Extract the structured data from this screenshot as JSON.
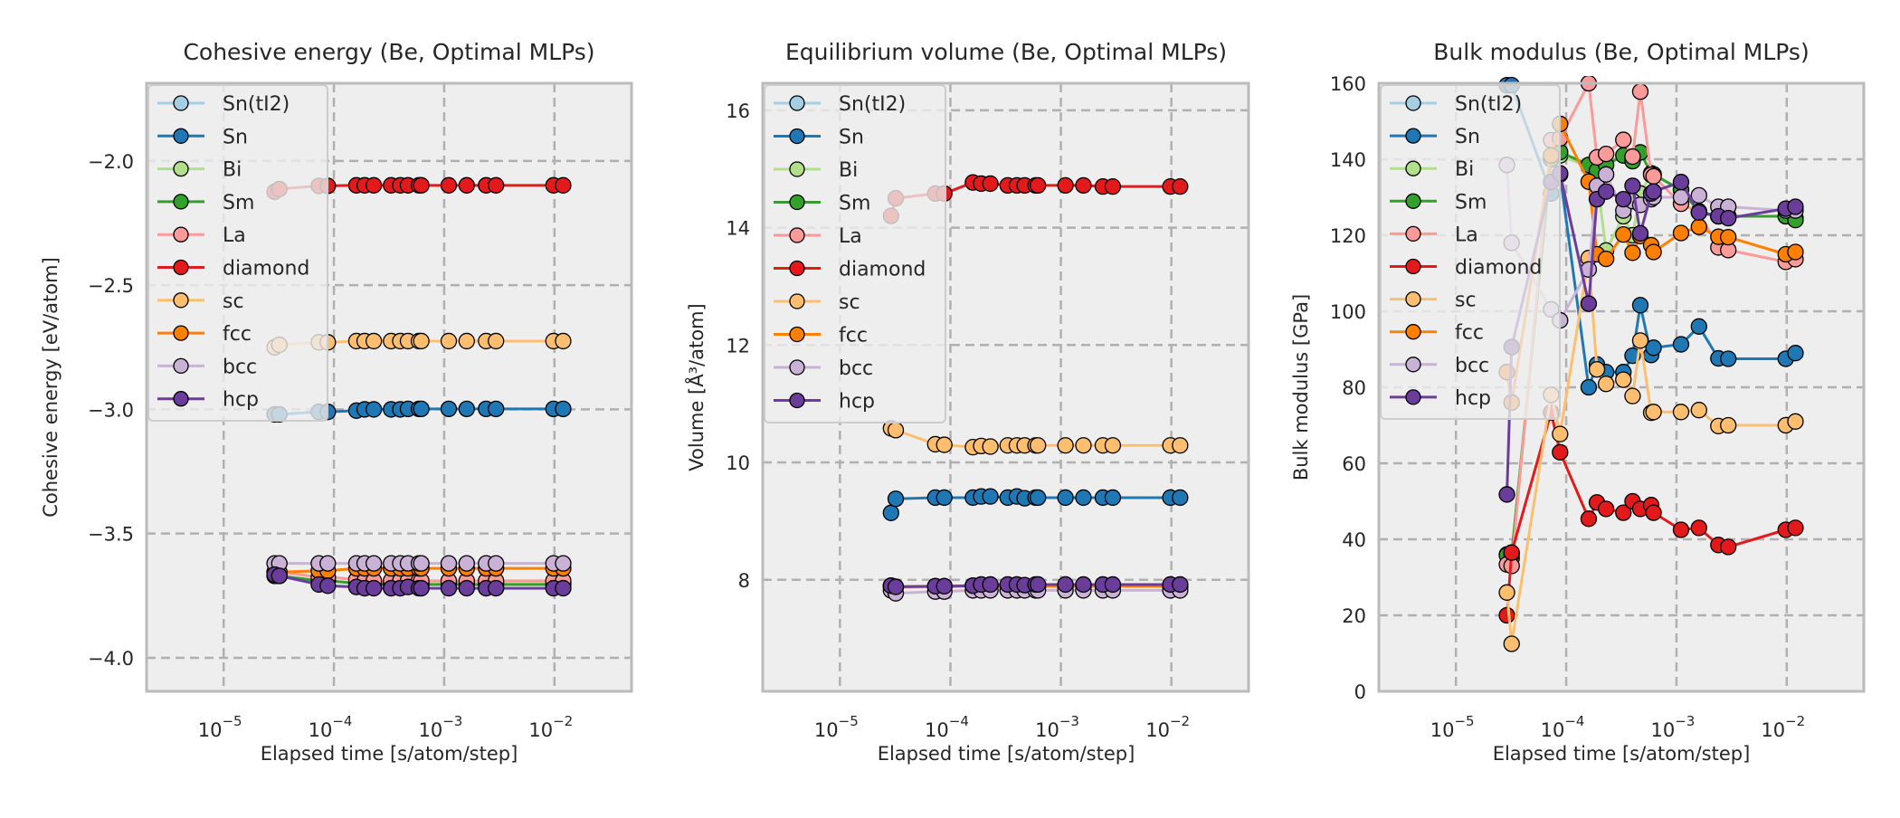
{
  "figure": {
    "background": "#ffffff",
    "axes_facecolor": "#eeeeee",
    "frame_color": "#bbbbbb",
    "grid_color": "#b0b0b0"
  },
  "series_styles": [
    {
      "name": "Sn(tI2)",
      "color": "#a6cee3"
    },
    {
      "name": "Sn",
      "color": "#1f78b4"
    },
    {
      "name": "Bi",
      "color": "#b2df8a"
    },
    {
      "name": "Sm",
      "color": "#33a02c"
    },
    {
      "name": "La",
      "color": "#fb9a99"
    },
    {
      "name": "diamond",
      "color": "#e31a1c"
    },
    {
      "name": "sc",
      "color": "#fdbf6f"
    },
    {
      "name": "fcc",
      "color": "#ff7f00"
    },
    {
      "name": "bcc",
      "color": "#cab2d6"
    },
    {
      "name": "hcp",
      "color": "#6a3d9a"
    }
  ],
  "chart_data": [
    {
      "type": "line",
      "title": "Cohesive energy (Be, Optimal MLPs)",
      "xlabel": "Elapsed time [s/atom/step]",
      "ylabel": "Cohesive energy [eV/atom]",
      "xscale": "log",
      "xlim": [
        2e-06,
        0.05
      ],
      "ylim": [
        -4.135,
        -1.687
      ],
      "xticks": [
        {
          "base": "10",
          "exp": "−5",
          "value": 1e-05
        },
        {
          "base": "10",
          "exp": "−4",
          "value": 0.0001
        },
        {
          "base": "10",
          "exp": "−3",
          "value": 0.001
        },
        {
          "base": "10",
          "exp": "−2",
          "value": 0.01
        }
      ],
      "yticks": [
        {
          "label": "−4.0",
          "value": -4.0
        },
        {
          "label": "−3.5",
          "value": -3.5
        },
        {
          "label": "−3.0",
          "value": -3.0
        },
        {
          "label": "−2.5",
          "value": -2.5
        },
        {
          "label": "−2.0",
          "value": -2.0
        }
      ],
      "grid": true,
      "legend": "upper-left",
      "x": [
        2.9e-05,
        3.2e-05,
        7.3e-05,
        8.8e-05,
        0.00016,
        0.00019,
        0.00023,
        0.00033,
        0.0004,
        0.00047,
        0.00059,
        0.00062,
        0.0011,
        0.0016,
        0.0024,
        0.00295,
        0.0098,
        0.012
      ],
      "series": [
        {
          "name": "Sn(tI2)",
          "values": []
        },
        {
          "name": "Sn",
          "values": [
            -3.02,
            -3.02,
            -3.01,
            -3.01,
            -3.005,
            -3.0,
            -3.0,
            -3.0,
            -3.0,
            -2.998,
            -2.998,
            -2.998,
            -2.998,
            -2.998,
            -2.998,
            -2.998,
            -2.998,
            -2.998
          ]
        },
        {
          "name": "Bi",
          "values": [
            -3.67,
            -3.67,
            -3.69,
            -3.69,
            -3.7,
            -3.7,
            -3.7,
            -3.7,
            -3.7,
            -3.7,
            -3.7,
            -3.7,
            -3.7,
            -3.7,
            -3.7,
            -3.7,
            -3.7,
            -3.7
          ]
        },
        {
          "name": "Sm",
          "values": [
            -3.67,
            -3.67,
            -3.69,
            -3.69,
            -3.7,
            -3.705,
            -3.705,
            -3.705,
            -3.705,
            -3.705,
            -3.705,
            -3.705,
            -3.705,
            -3.705,
            -3.705,
            -3.705,
            -3.705,
            -3.705
          ]
        },
        {
          "name": "La",
          "values": [
            -3.655,
            -3.655,
            -3.675,
            -3.675,
            -3.685,
            -3.69,
            -3.69,
            -3.69,
            -3.69,
            -3.69,
            -3.69,
            -3.69,
            -3.69,
            -3.69,
            -3.69,
            -3.69,
            -3.69,
            -3.69
          ]
        },
        {
          "name": "diamond",
          "values": [
            -2.124,
            -2.113,
            -2.1,
            -2.1,
            -2.098,
            -2.098,
            -2.098,
            -2.098,
            -2.098,
            -2.098,
            -2.098,
            -2.098,
            -2.098,
            -2.098,
            -2.098,
            -2.098,
            -2.098,
            -2.098
          ]
        },
        {
          "name": "sc",
          "values": [
            -2.75,
            -2.74,
            -2.73,
            -2.73,
            -2.725,
            -2.725,
            -2.725,
            -2.725,
            -2.725,
            -2.725,
            -2.725,
            -2.725,
            -2.725,
            -2.725,
            -2.725,
            -2.725,
            -2.725,
            -2.725
          ]
        },
        {
          "name": "fcc",
          "values": [
            -3.655,
            -3.655,
            -3.65,
            -3.65,
            -3.64,
            -3.64,
            -3.64,
            -3.64,
            -3.64,
            -3.64,
            -3.64,
            -3.64,
            -3.64,
            -3.64,
            -3.64,
            -3.64,
            -3.64,
            -3.64
          ]
        },
        {
          "name": "bcc",
          "values": [
            -3.62,
            -3.62,
            -3.62,
            -3.62,
            -3.62,
            -3.62,
            -3.62,
            -3.62,
            -3.62,
            -3.62,
            -3.62,
            -3.62,
            -3.62,
            -3.62,
            -3.62,
            -3.62,
            -3.62,
            -3.62
          ]
        },
        {
          "name": "hcp",
          "values": [
            -3.665,
            -3.67,
            -3.705,
            -3.71,
            -3.715,
            -3.72,
            -3.72,
            -3.72,
            -3.72,
            -3.715,
            -3.72,
            -3.72,
            -3.72,
            -3.72,
            -3.72,
            -3.72,
            -3.72,
            -3.72
          ]
        }
      ]
    },
    {
      "type": "line",
      "title": "Equilibrium volume (Be, Optimal MLPs)",
      "xlabel": "Elapsed time [s/atom/step]",
      "ylabel": "Volume [Å³/atom]",
      "xscale": "log",
      "xlim": [
        2e-06,
        0.05
      ],
      "ylim": [
        6.1,
        16.46
      ],
      "xticks": [
        {
          "base": "10",
          "exp": "−5",
          "value": 1e-05
        },
        {
          "base": "10",
          "exp": "−4",
          "value": 0.0001
        },
        {
          "base": "10",
          "exp": "−3",
          "value": 0.001
        },
        {
          "base": "10",
          "exp": "−2",
          "value": 0.01
        }
      ],
      "yticks": [
        {
          "label": "8",
          "value": 8
        },
        {
          "label": "10",
          "value": 10
        },
        {
          "label": "12",
          "value": 12
        },
        {
          "label": "14",
          "value": 14
        },
        {
          "label": "16",
          "value": 16
        }
      ],
      "grid": true,
      "legend": "upper-left",
      "x": [
        2.9e-05,
        3.2e-05,
        7.3e-05,
        8.8e-05,
        0.00016,
        0.00019,
        0.00023,
        0.00033,
        0.0004,
        0.00047,
        0.00059,
        0.00062,
        0.0011,
        0.0016,
        0.0024,
        0.00295,
        0.0098,
        0.012
      ],
      "series": [
        {
          "name": "Sn(tI2)",
          "values": []
        },
        {
          "name": "Sn",
          "values": [
            9.14,
            9.38,
            9.4,
            9.4,
            9.4,
            9.42,
            9.42,
            9.4,
            9.42,
            9.39,
            9.4,
            9.4,
            9.4,
            9.4,
            9.4,
            9.4,
            9.4,
            9.4
          ]
        },
        {
          "name": "Bi",
          "values": [
            7.9,
            7.88,
            7.89,
            7.89,
            7.9,
            7.9,
            7.9,
            7.9,
            7.9,
            7.9,
            7.9,
            7.9,
            7.9,
            7.9,
            7.9,
            7.9,
            7.9,
            7.9
          ]
        },
        {
          "name": "Sm",
          "values": [
            7.9,
            7.88,
            7.89,
            7.89,
            7.9,
            7.9,
            7.9,
            7.9,
            7.9,
            7.9,
            7.9,
            7.9,
            7.9,
            7.9,
            7.9,
            7.9,
            7.9,
            7.9
          ]
        },
        {
          "name": "La",
          "values": [
            7.89,
            7.87,
            7.88,
            7.88,
            7.89,
            7.89,
            7.89,
            7.89,
            7.89,
            7.89,
            7.89,
            7.89,
            7.89,
            7.89,
            7.89,
            7.89,
            7.89,
            7.89
          ]
        },
        {
          "name": "diamond",
          "values": [
            14.2,
            14.5,
            14.58,
            14.58,
            14.77,
            14.75,
            14.75,
            14.72,
            14.72,
            14.72,
            14.72,
            14.72,
            14.72,
            14.72,
            14.7,
            14.7,
            14.7,
            14.7
          ]
        },
        {
          "name": "sc",
          "values": [
            10.58,
            10.55,
            10.31,
            10.3,
            10.26,
            10.28,
            10.27,
            10.29,
            10.29,
            10.29,
            10.29,
            10.29,
            10.29,
            10.29,
            10.29,
            10.29,
            10.29,
            10.29
          ]
        },
        {
          "name": "fcc",
          "values": [
            7.89,
            7.88,
            7.89,
            7.89,
            7.9,
            7.9,
            7.9,
            7.89,
            7.89,
            7.89,
            7.89,
            7.89,
            7.89,
            7.89,
            7.89,
            7.89,
            7.89,
            7.89
          ]
        },
        {
          "name": "bcc",
          "values": [
            7.82,
            7.77,
            7.8,
            7.8,
            7.82,
            7.82,
            7.82,
            7.82,
            7.82,
            7.82,
            7.82,
            7.82,
            7.82,
            7.82,
            7.82,
            7.82,
            7.82,
            7.82
          ]
        },
        {
          "name": "hcp",
          "values": [
            7.9,
            7.88,
            7.89,
            7.89,
            7.9,
            7.92,
            7.92,
            7.92,
            7.92,
            7.91,
            7.92,
            7.92,
            7.92,
            7.92,
            7.92,
            7.92,
            7.92,
            7.92
          ]
        }
      ]
    },
    {
      "type": "line",
      "title": "Bulk modulus (Be, Optimal MLPs)",
      "xlabel": "Elapsed time [s/atom/step]",
      "ylabel": "Bulk modulus [GPa]",
      "xscale": "log",
      "xlim": [
        2e-06,
        0.05
      ],
      "ylim": [
        0,
        160
      ],
      "xticks": [
        {
          "base": "10",
          "exp": "−5",
          "value": 1e-05
        },
        {
          "base": "10",
          "exp": "−4",
          "value": 0.0001
        },
        {
          "base": "10",
          "exp": "−3",
          "value": 0.001
        },
        {
          "base": "10",
          "exp": "−2",
          "value": 0.01
        }
      ],
      "yticks": [
        {
          "label": "0",
          "value": 0
        },
        {
          "label": "20",
          "value": 20
        },
        {
          "label": "40",
          "value": 40
        },
        {
          "label": "60",
          "value": 60
        },
        {
          "label": "80",
          "value": 80
        },
        {
          "label": "100",
          "value": 100
        },
        {
          "label": "120",
          "value": 120
        },
        {
          "label": "140",
          "value": 140
        },
        {
          "label": "160",
          "value": 160
        }
      ],
      "grid": true,
      "legend": "upper-left",
      "x": [
        2.9e-05,
        3.2e-05,
        7.3e-05,
        8.8e-05,
        0.00016,
        0.00019,
        0.00023,
        0.00033,
        0.0004,
        0.00047,
        0.00059,
        0.00062,
        0.0011,
        0.0016,
        0.0024,
        0.00295,
        0.0098,
        0.012
      ],
      "series": [
        {
          "name": "Sn(tI2)",
          "values": []
        },
        {
          "name": "Sn",
          "values": [
            159.5,
            159.5,
            131,
            136,
            80,
            86,
            84,
            84,
            88.3,
            101.6,
            88.5,
            90.4,
            91.3,
            96,
            87.6,
            87.5,
            87.5,
            89
          ]
        },
        {
          "name": "Bi",
          "values": [
            36,
            35,
            140,
            141,
            138,
            135,
            116,
            125,
            120,
            131,
            136,
            136,
            132,
            126,
            125,
            125,
            125,
            124.5
          ]
        },
        {
          "name": "Sm",
          "values": [
            35.8,
            36,
            140,
            141.9,
            138.5,
            137,
            138.5,
            141,
            139.5,
            141.8,
            136.3,
            136,
            131.9,
            126.3,
            125,
            125,
            125,
            124
          ]
        },
        {
          "name": "La",
          "values": [
            33.4,
            33,
            145,
            145.5,
            160,
            140.5,
            141.4,
            145.1,
            140.7,
            157.8,
            135.9,
            135.5,
            128.3,
            126,
            116.8,
            116.1,
            113,
            113.7
          ]
        },
        {
          "name": "diamond",
          "values": [
            20,
            36.5,
            73.4,
            62.9,
            45.4,
            49.7,
            48,
            47,
            50,
            48,
            49,
            47,
            42.5,
            43,
            38.5,
            38,
            42.5,
            43
          ]
        },
        {
          "name": "sc",
          "values": [
            26,
            12.5,
            78,
            67.7,
            114,
            84.7,
            80.9,
            82,
            77.7,
            92.3,
            73.3,
            73.5,
            73.5,
            74,
            69.8,
            70,
            70,
            71
          ]
        },
        {
          "name": "fcc",
          "values": [
            84,
            76,
            141,
            149.3,
            134.1,
            115,
            113.8,
            120.2,
            115.4,
            119.8,
            117.4,
            115.6,
            120.6,
            122.2,
            119.6,
            119.5,
            115,
            115.6
          ]
        },
        {
          "name": "bcc",
          "values": [
            138.5,
            118,
            100.5,
            97.6,
            111,
            133,
            136,
            126.5,
            129,
            128,
            129.5,
            130,
            130,
            130.5,
            127.5,
            127.5,
            126.5,
            126.5
          ]
        },
        {
          "name": "hcp",
          "values": [
            51.8,
            90.6,
            134,
            136.3,
            102,
            129.5,
            131.5,
            129.5,
            133,
            120.5,
            131,
            131.5,
            134,
            126,
            125,
            124.5,
            127,
            127.5
          ]
        }
      ]
    }
  ]
}
